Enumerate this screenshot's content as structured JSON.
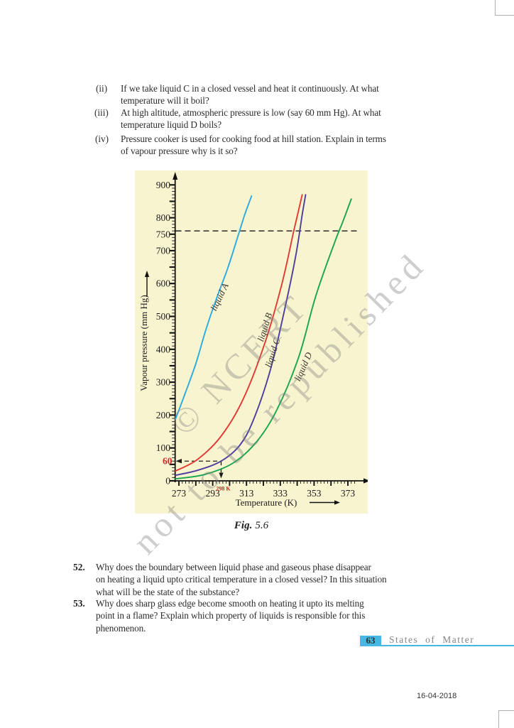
{
  "page": {
    "questions_sub": [
      {
        "label": "(ii)",
        "text": "If we take liquid C in a closed vessel and heat it continuously. At what\ntemperature will it boil?"
      },
      {
        "label": "(iii)",
        "text": "At high altitude, atmospheric pressure is low (say 60 mm Hg). At what\ntemperature liquid D boils?"
      },
      {
        "label": "(iv)",
        "text": "Pressure cooker is used for cooking food at hill station. Explain in terms\nof vapour pressure why is it so?"
      }
    ],
    "questions_main": [
      {
        "number": "52.",
        "text": "Why does the boundary between liquid phase and gaseous phase disappear\non heating a liquid upto critical temperature in a closed vessel? In this situation\nwhat will be the state of the substance?"
      },
      {
        "number": "53.",
        "text": "Why does sharp glass edge become smooth on heating it upto its melting\npoint in a flame? Explain which property of liquids is responsible for this\nphenomenon."
      }
    ],
    "figure_caption_prefix": "Fig.",
    "figure_caption_number": "5.6",
    "watermark_line1": "© NCERT",
    "watermark_line2": "not to be republished",
    "footer": {
      "page_number": "63",
      "chapter": "States  of  Matter",
      "accent_color": "#45b7e0"
    },
    "date_stamp": "16-04-2018",
    "figure_background": "#f8f4d0"
  },
  "chart_data": {
    "type": "line",
    "title": "Fig. 5.6",
    "xlabel": "Temperature (K)",
    "ylabel": "Vapour pressure (mm Hg)",
    "xlim": [
      271,
      378
    ],
    "ylim": [
      0,
      940
    ],
    "grid": false,
    "legend_position": "labels-on-curves",
    "x_ticks_labeled": [
      273,
      293,
      313,
      333,
      353,
      373
    ],
    "x_major_step": 10,
    "x_minor_step": 2,
    "y_ticks_labeled": [
      0,
      100,
      200,
      300,
      400,
      500,
      600,
      700,
      750,
      800,
      900
    ],
    "y_major_step": 50,
    "y_minor_step": 10,
    "series": [
      {
        "name": "liquid A",
        "color": "#2baae2",
        "points": [
          [
            271,
            188
          ],
          [
            277,
            270
          ],
          [
            283,
            356
          ],
          [
            289,
            460
          ],
          [
            295,
            551
          ],
          [
            302,
            648
          ],
          [
            308,
            745
          ],
          [
            312,
            810
          ],
          [
            316,
            866
          ]
        ]
      },
      {
        "name": "liquid B",
        "color": "#e03a34",
        "points": [
          [
            271,
            30
          ],
          [
            284,
            65
          ],
          [
            298,
            136
          ],
          [
            311,
            248
          ],
          [
            324,
            421
          ],
          [
            334,
            600
          ],
          [
            341,
            760
          ],
          [
            346,
            870
          ]
        ]
      },
      {
        "name": "liquid C",
        "color": "#4b3e9e",
        "points": [
          [
            271,
            17
          ],
          [
            284,
            32
          ],
          [
            298,
            60
          ],
          [
            309,
            108
          ],
          [
            317,
            184
          ],
          [
            327,
            335
          ],
          [
            335,
            508
          ],
          [
            342,
            680
          ],
          [
            346,
            810
          ],
          [
            348,
            870
          ]
        ]
      },
      {
        "name": "liquid D",
        "color": "#17a550",
        "points": [
          [
            271,
            6
          ],
          [
            288,
            19
          ],
          [
            305,
            54
          ],
          [
            319,
            119
          ],
          [
            331,
            216
          ],
          [
            344,
            378
          ],
          [
            354,
            562
          ],
          [
            365,
            723
          ],
          [
            370,
            788
          ],
          [
            375,
            857
          ]
        ]
      }
    ],
    "annotations": {
      "atmospheric_pressure_line": {
        "value": 760,
        "style": "dashed"
      },
      "marker_pressure": {
        "label": "60",
        "value": 60,
        "color": "#d22a2a"
      },
      "marker_temperature": {
        "label": "298 K",
        "value": 298,
        "color": "#cc1f1f"
      }
    }
  }
}
